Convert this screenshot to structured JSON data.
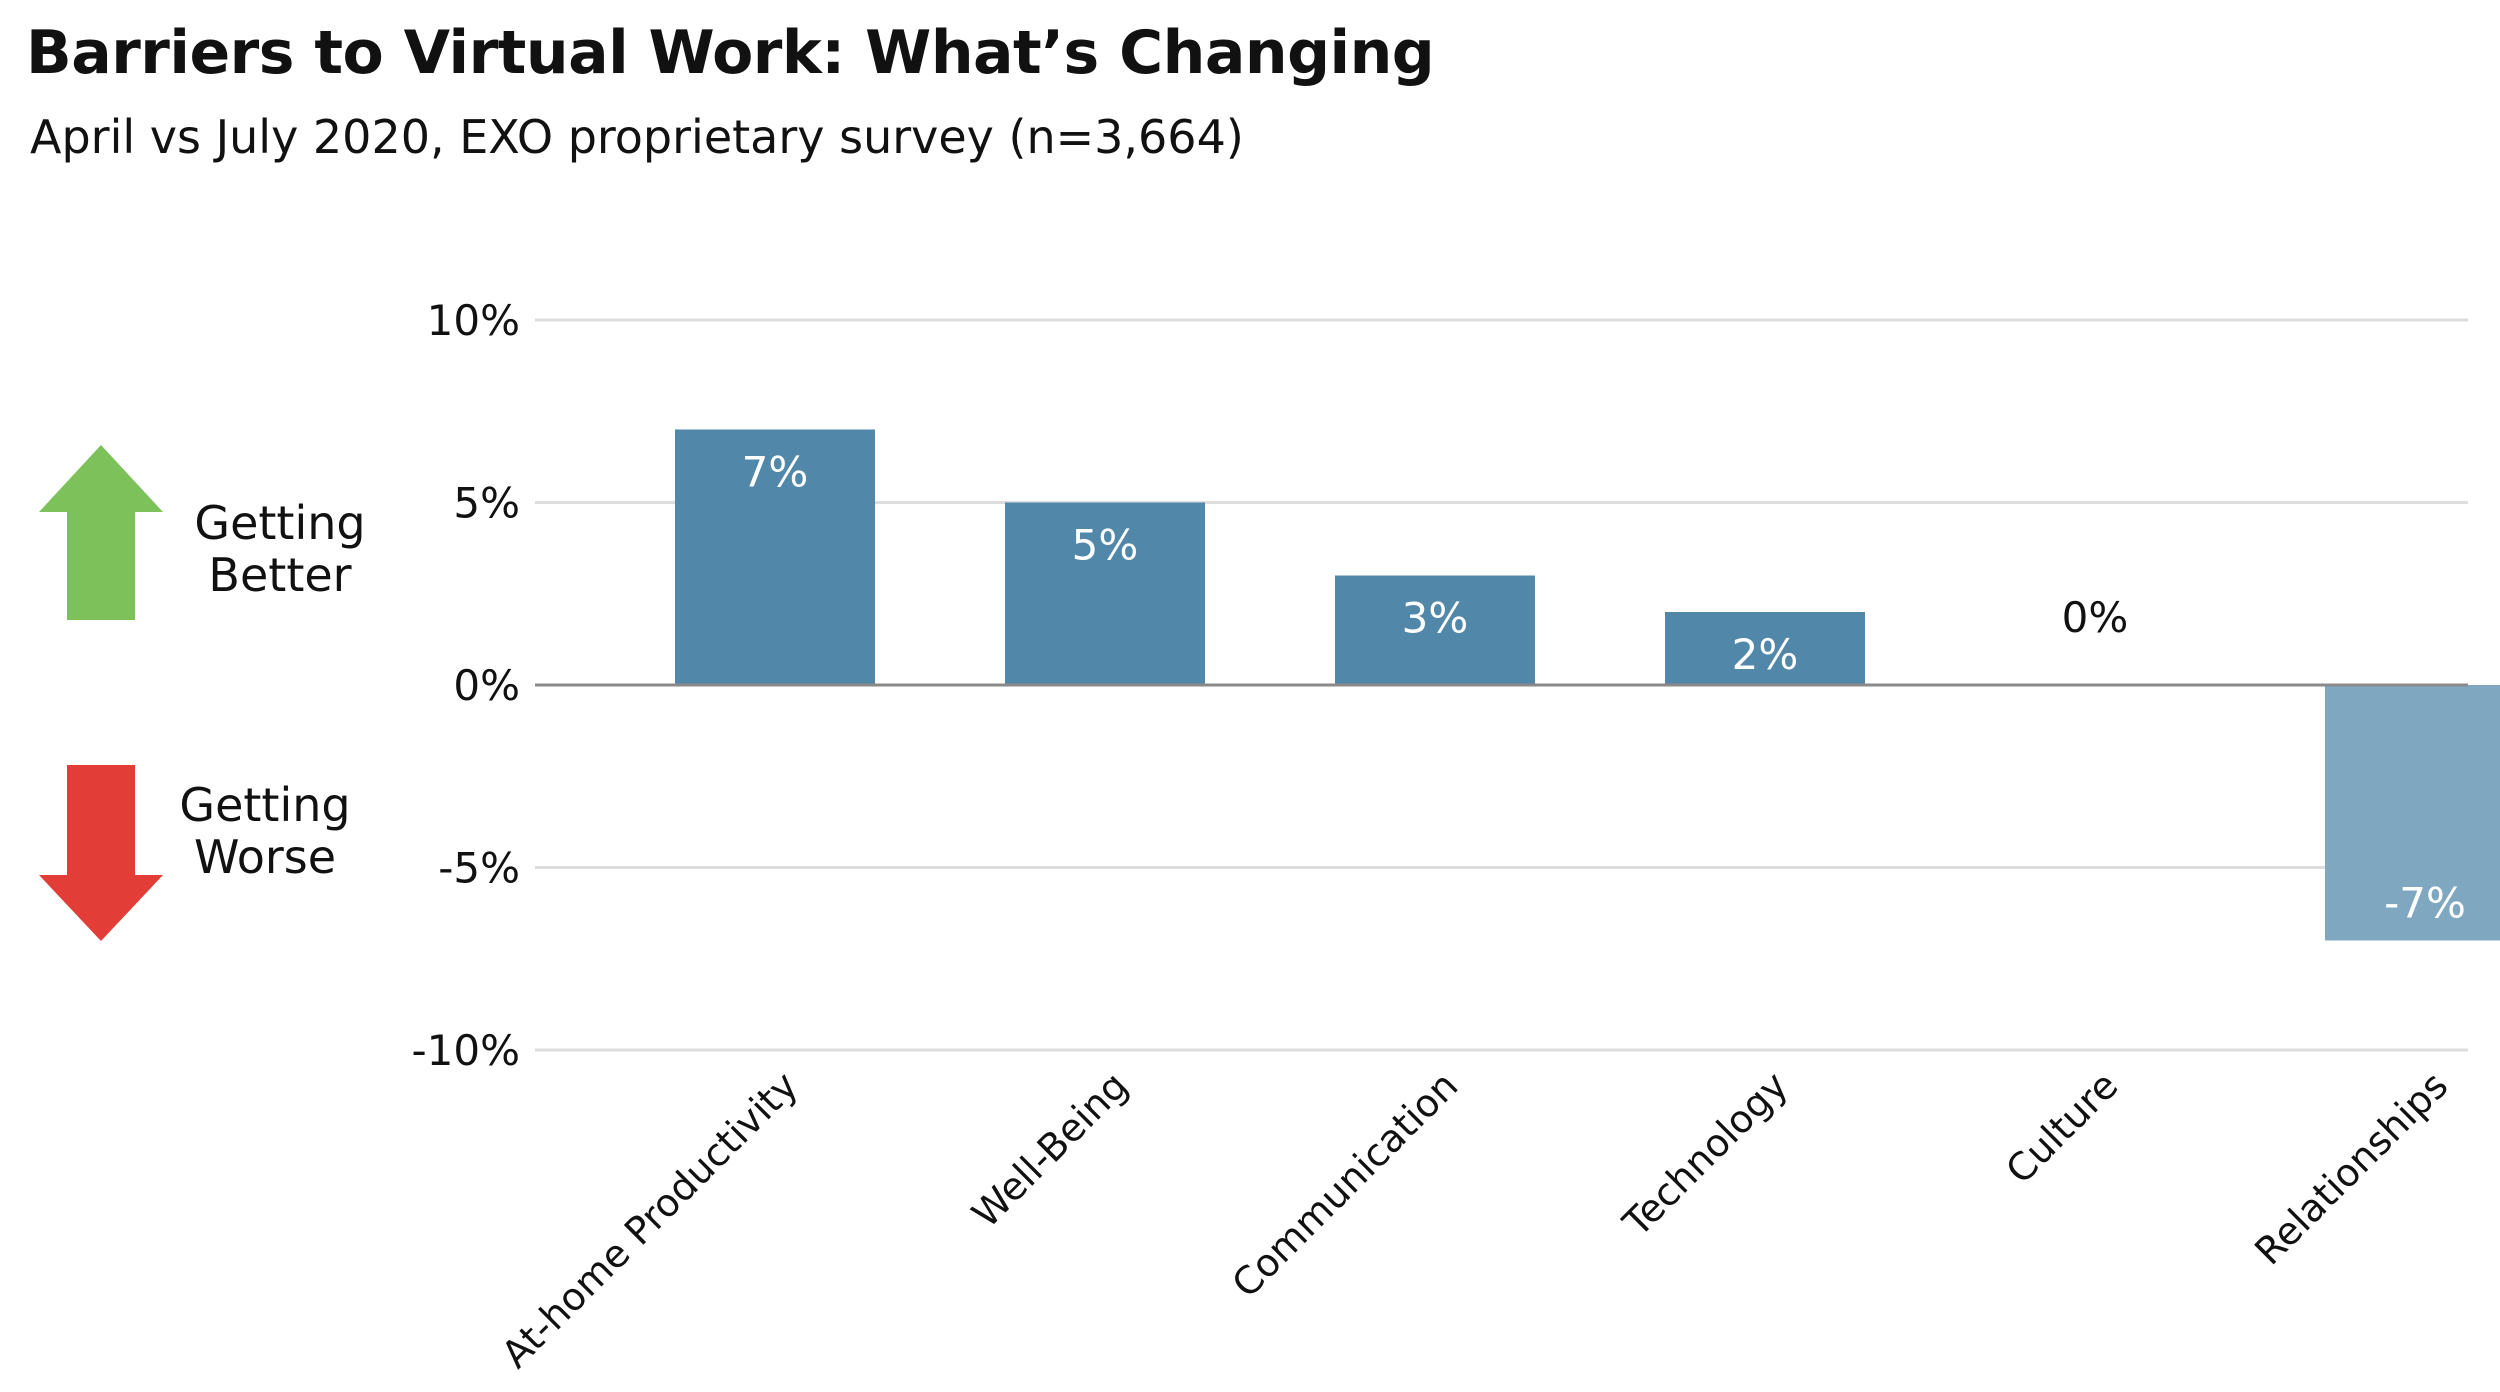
{
  "title": "Barriers to Virtual Work: What’s Changing",
  "subtitle": "April vs July 2020, EXO proprietary survey (n=3,664)",
  "legend": {
    "better": {
      "line1": "Getting",
      "line2": "Better",
      "icon": "arrow-up-icon",
      "color": "#7dc15a"
    },
    "worse": {
      "line1": "Getting",
      "line2": "Worse",
      "icon": "arrow-down-icon",
      "color": "#e23d36"
    }
  },
  "colors": {
    "bar": "#5187a8",
    "bar_negative": "#7fa7c0",
    "grid": "#dddddd",
    "zero_line": "#8a8a8a"
  },
  "chart_data": {
    "type": "bar",
    "categories": [
      "At-home Productivity",
      "Well-Being",
      "Communication",
      "Technology",
      "Culture",
      "Relationships"
    ],
    "values": [
      7,
      5,
      3,
      2,
      0,
      -7
    ],
    "data_labels": [
      "7%",
      "5%",
      "3%",
      "2%",
      "0%",
      "-7%"
    ],
    "ylim": [
      -10,
      10
    ],
    "yticks": [
      10,
      5,
      0,
      -5,
      -10
    ],
    "ytick_labels": [
      "10%",
      "5%",
      "0%",
      "-5%",
      "-10%"
    ],
    "xlabel": "",
    "ylabel": "",
    "grid": true
  }
}
